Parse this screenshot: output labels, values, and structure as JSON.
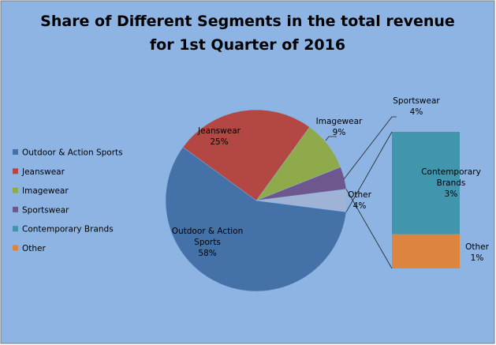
{
  "chart_data": {
    "type": "pie",
    "subtype": "bar-of-pie",
    "title_lines": [
      "Share of Different Segments in the total revenue",
      "for 1st Quarter of 2016"
    ],
    "slices": [
      {
        "name": "Outdoor & Action Sports",
        "label_lines": [
          "Outdoor & Action",
          "Sports",
          "58%"
        ],
        "value": 58,
        "color": "#4472A8"
      },
      {
        "name": "Jeanswear",
        "label_lines": [
          "Jeanswear",
          "25%"
        ],
        "value": 25,
        "color": "#B24743"
      },
      {
        "name": "Imagewear",
        "label_lines": [
          "Imagewear",
          "9%"
        ],
        "value": 9,
        "color": "#8FAA4A"
      },
      {
        "name": "Sportswear",
        "label_lines": [
          "Sportswear",
          "4%"
        ],
        "value": 4,
        "color": "#6E568E"
      },
      {
        "name": "Other",
        "label_lines": [
          "Other",
          "4%"
        ],
        "value": 4,
        "color": "#9FB3D6"
      }
    ],
    "breakout": [
      {
        "name": "Contemporary Brands",
        "label_lines": [
          "Contemporary",
          "Brands",
          "3%"
        ],
        "value": 3,
        "color": "#4196AE"
      },
      {
        "name": "Other",
        "label_lines": [
          "Other",
          "1%"
        ],
        "value": 1,
        "color": "#DD853E"
      }
    ],
    "legend": {
      "placement": "left",
      "entries": [
        {
          "label": "Outdoor & Action Sports",
          "color": "#4472A8"
        },
        {
          "label": "Jeanswear",
          "color": "#B24743"
        },
        {
          "label": "Imagewear",
          "color": "#8FAA4A"
        },
        {
          "label": "Sportswear",
          "color": "#6E568E"
        },
        {
          "label": "Contemporary Brands",
          "color": "#4196AE"
        },
        {
          "label": "Other",
          "color": "#DD853E"
        }
      ]
    },
    "background": "#8DB4E3"
  }
}
